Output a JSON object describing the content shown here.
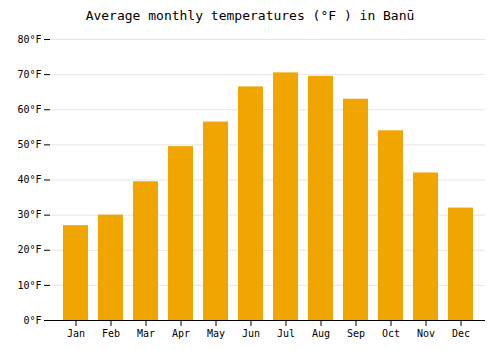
{
  "chart_data": {
    "type": "bar",
    "title": "Average monthly temperatures (°F ) in Banū",
    "categories": [
      "Jan",
      "Feb",
      "Mar",
      "Apr",
      "May",
      "Jun",
      "Jul",
      "Aug",
      "Sep",
      "Oct",
      "Nov",
      "Dec"
    ],
    "values": [
      27,
      30,
      39.5,
      49.5,
      56.5,
      66.5,
      70.5,
      69.5,
      63,
      54,
      42,
      32
    ],
    "color": "#F0A500",
    "ylim": [
      0,
      80
    ],
    "yticks": [
      {
        "value": 0,
        "label": "0°F"
      },
      {
        "value": 10,
        "label": "10°F"
      },
      {
        "value": 20,
        "label": "20°F"
      },
      {
        "value": 30,
        "label": "30°F"
      },
      {
        "value": 40,
        "label": "40°F"
      },
      {
        "value": 50,
        "label": "50°F"
      },
      {
        "value": 60,
        "label": "60°F"
      },
      {
        "value": 70,
        "label": "70°F"
      },
      {
        "value": 80,
        "label": "80°F"
      }
    ],
    "grid": true
  }
}
